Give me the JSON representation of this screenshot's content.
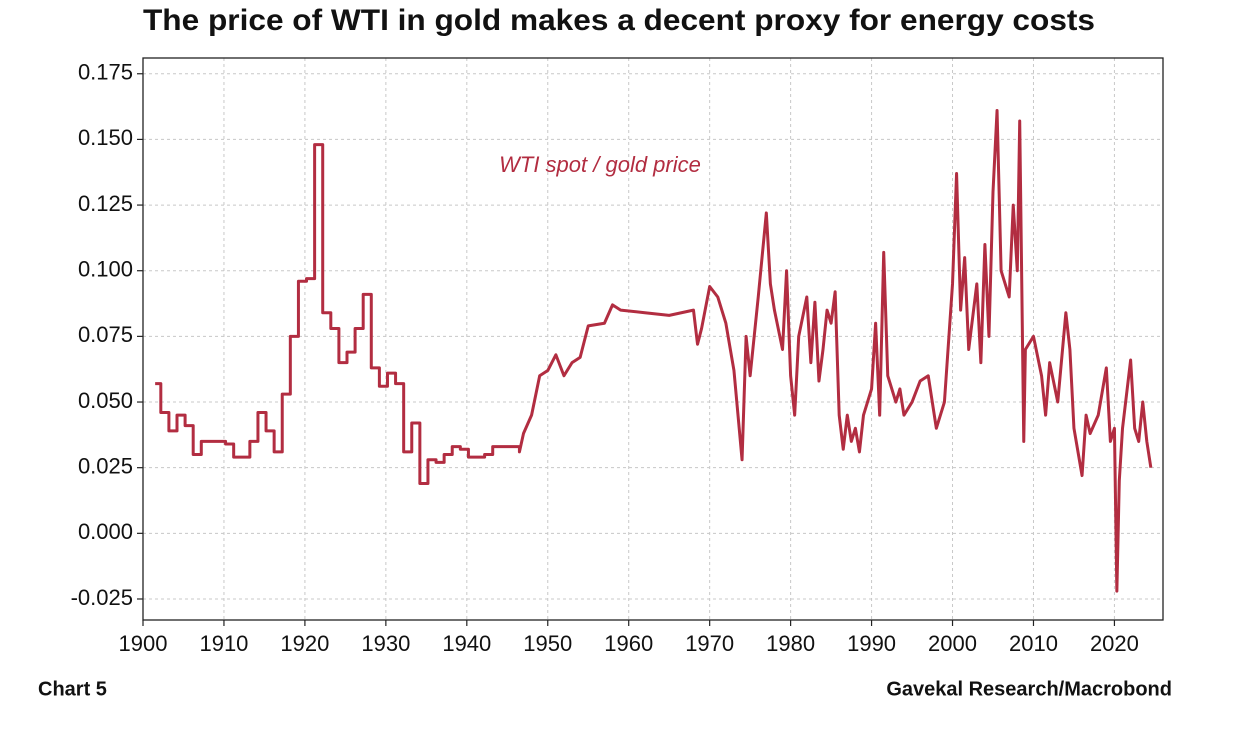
{
  "chart_data": {
    "type": "line",
    "title": "The price of WTI in gold makes a decent proxy for energy costs",
    "chart_label": "Chart 5",
    "source": "Gavekal Research/Macrobond",
    "xlim": [
      1900,
      2026
    ],
    "ylim": [
      -0.033,
      0.181
    ],
    "xticks": [
      1900,
      1910,
      1920,
      1930,
      1940,
      1950,
      1960,
      1970,
      1980,
      1990,
      2000,
      2010,
      2020
    ],
    "yticks": [
      -0.025,
      {
        "value": 0,
        "label": "0.000"
      },
      0.025,
      {
        "value": 0.05,
        "label": "0.050"
      },
      0.075,
      {
        "value": 0.1,
        "label": "0.100"
      },
      0.125,
      {
        "value": 0.15,
        "label": "0.150"
      },
      0.175
    ],
    "grid": true,
    "x": [
      1901.5,
      1902.2,
      1902.2,
      1903.2,
      1903.2,
      1904.2,
      1904.2,
      1905.2,
      1905.2,
      1906.2,
      1906.2,
      1907.2,
      1907.2,
      1910.2,
      1910.2,
      1911.2,
      1911.2,
      1913.2,
      1913.2,
      1914.2,
      1914.2,
      1915.2,
      1915.2,
      1916.2,
      1916.2,
      1917.2,
      1917.2,
      1918.2,
      1918.2,
      1919.2,
      1919.2,
      1920.2,
      1920.2,
      1921.2,
      1921.2,
      1922.2,
      1922.2,
      1923.2,
      1923.2,
      1924.2,
      1924.2,
      1925.2,
      1925.2,
      1926.2,
      1926.2,
      1927.2,
      1927.2,
      1928.2,
      1928.2,
      1929.2,
      1929.2,
      1930.2,
      1930.2,
      1931.2,
      1931.2,
      1932.2,
      1932.2,
      1933.2,
      1933.2,
      1934.2,
      1934.2,
      1935.2,
      1935.2,
      1936.2,
      1936.2,
      1937.2,
      1937.2,
      1938.2,
      1938.2,
      1939.2,
      1939.2,
      1940.2,
      1940.2,
      1942.2,
      1942.2,
      1943.2,
      1943.2,
      1946.5,
      1946.5,
      1947,
      1948,
      1949,
      1950,
      1951,
      1952,
      1953,
      1954,
      1955,
      1957,
      1958,
      1959,
      1962,
      1965,
      1968,
      1968.5,
      1969,
      1970,
      1971,
      1972,
      1973,
      1973.5,
      1974,
      1974.5,
      1975,
      1976,
      1977,
      1977.5,
      1978,
      1979,
      1979.5,
      1980,
      1980.5,
      1981,
      1982,
      1982.5,
      1983,
      1983.5,
      1984,
      1984.5,
      1985,
      1985.5,
      1986,
      1986.5,
      1987,
      1987.5,
      1988,
      1988.5,
      1989,
      1990,
      1990.5,
      1991,
      1991.5,
      1992,
      1993,
      1993.5,
      1994,
      1995,
      1996,
      1997,
      1998,
      1999,
      2000,
      2000.5,
      2001,
      2001.5,
      2002,
      2003,
      2003.5,
      2004,
      2004.5,
      2005,
      2005.5,
      2006,
      2007,
      2007.5,
      2008,
      2008.3,
      2008.8,
      2009,
      2010,
      2011,
      2011.5,
      2012,
      2013,
      2014,
      2014.5,
      2015,
      2016,
      2016.5,
      2017,
      2018,
      2019,
      2019.5,
      2020,
      2020.3,
      2020.6,
      2021,
      2022,
      2022.5,
      2023,
      2023.5,
      2024,
      2024.5
    ],
    "series": [
      {
        "name": "WTI spot / gold price",
        "color": "#b22d41",
        "values": [
          0.057,
          0.057,
          0.046,
          0.046,
          0.039,
          0.039,
          0.045,
          0.045,
          0.041,
          0.041,
          0.03,
          0.03,
          0.035,
          0.035,
          0.034,
          0.034,
          0.029,
          0.029,
          0.035,
          0.035,
          0.046,
          0.046,
          0.039,
          0.039,
          0.031,
          0.031,
          0.053,
          0.053,
          0.075,
          0.075,
          0.096,
          0.096,
          0.097,
          0.097,
          0.148,
          0.148,
          0.084,
          0.084,
          0.078,
          0.078,
          0.065,
          0.065,
          0.069,
          0.069,
          0.078,
          0.078,
          0.091,
          0.091,
          0.063,
          0.063,
          0.056,
          0.056,
          0.061,
          0.061,
          0.057,
          0.057,
          0.031,
          0.031,
          0.042,
          0.042,
          0.019,
          0.019,
          0.028,
          0.028,
          0.027,
          0.027,
          0.03,
          0.03,
          0.033,
          0.033,
          0.032,
          0.032,
          0.029,
          0.029,
          0.03,
          0.03,
          0.033,
          0.033,
          0.031,
          0.038,
          0.045,
          0.06,
          0.062,
          0.068,
          0.06,
          0.065,
          0.067,
          0.079,
          0.08,
          0.087,
          0.085,
          0.084,
          0.083,
          0.085,
          0.072,
          0.078,
          0.094,
          0.09,
          0.08,
          0.062,
          0.045,
          0.028,
          0.075,
          0.06,
          0.09,
          0.122,
          0.095,
          0.085,
          0.07,
          0.1,
          0.06,
          0.045,
          0.075,
          0.09,
          0.065,
          0.088,
          0.058,
          0.07,
          0.085,
          0.08,
          0.092,
          0.045,
          0.032,
          0.045,
          0.035,
          0.04,
          0.031,
          0.045,
          0.055,
          0.08,
          0.045,
          0.107,
          0.06,
          0.05,
          0.055,
          0.045,
          0.05,
          0.058,
          0.06,
          0.04,
          0.05,
          0.095,
          0.137,
          0.085,
          0.105,
          0.07,
          0.095,
          0.065,
          0.11,
          0.075,
          0.13,
          0.161,
          0.1,
          0.09,
          0.125,
          0.1,
          0.157,
          0.035,
          0.07,
          0.075,
          0.06,
          0.045,
          0.065,
          0.05,
          0.084,
          0.07,
          0.04,
          0.022,
          0.045,
          0.038,
          0.045,
          0.063,
          0.035,
          0.04,
          -0.022,
          0.02,
          0.04,
          0.066,
          0.04,
          0.035,
          0.05,
          0.035,
          0.025
        ]
      }
    ]
  }
}
